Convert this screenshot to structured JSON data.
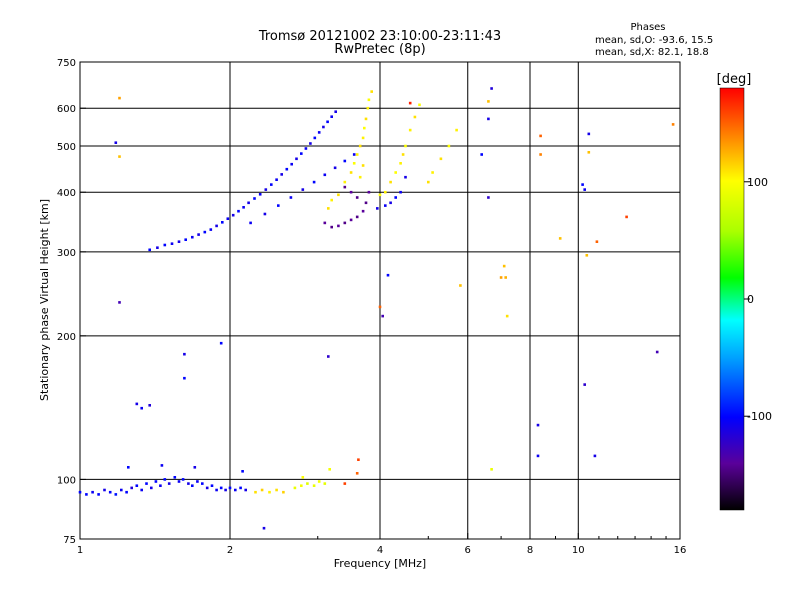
{
  "chart_data": {
    "type": "scatter",
    "title": "Tromsø 20121002 23:10:00-23:11:43",
    "subtitle": "RwPretec (8p)",
    "xlabel": "Frequency [MHz]",
    "ylabel": "Stationary phase Virtual Height [km]",
    "x_scale": "log",
    "y_scale": "log",
    "xlim": [
      1,
      16
    ],
    "ylim": [
      75,
      750
    ],
    "x_ticks": [
      1,
      2,
      4,
      6,
      8,
      10,
      16
    ],
    "x_tick_labels": [
      "1",
      "2",
      "4",
      "6",
      "8",
      "10",
      "16"
    ],
    "x_grid_lines": [
      2,
      4,
      6,
      8,
      10
    ],
    "y_ticks": [
      75,
      100,
      200,
      300,
      400,
      500,
      600,
      750
    ],
    "y_tick_labels": [
      "75",
      "100",
      "200",
      "300",
      "400",
      "500",
      "600",
      "750"
    ],
    "y_grid_lines": [
      100,
      200,
      300,
      400,
      500,
      600
    ],
    "grid": true,
    "legend": {
      "title": "Phases",
      "lines": [
        "mean, sd,O: -93.6, 15.5",
        "mean, sd,X:  82.1, 18.8"
      ],
      "position": "top-right"
    },
    "colorbar": {
      "label": "[deg]",
      "range": [
        -180,
        180
      ],
      "ticks": [
        100,
        0,
        -100
      ],
      "tick_labels": [
        "100",
        "0",
        "-100"
      ],
      "colors": [
        "#000000",
        "#5a009a",
        "#0000ff",
        "#00a0ff",
        "#00ffff",
        "#00ff00",
        "#aaff00",
        "#ffff00",
        "#ff8000",
        "#ff0000"
      ]
    },
    "series": [
      {
        "points": [
          [
            1.0,
            94,
            -100
          ],
          [
            1.03,
            93,
            -100
          ],
          [
            1.06,
            94,
            -105
          ],
          [
            1.09,
            93,
            -100
          ],
          [
            1.12,
            95,
            -110
          ],
          [
            1.15,
            94,
            -100
          ],
          [
            1.18,
            93,
            -95
          ],
          [
            1.21,
            95,
            -105
          ],
          [
            1.24,
            94,
            -100
          ],
          [
            1.27,
            96,
            -115
          ],
          [
            1.3,
            97,
            -100
          ],
          [
            1.33,
            95,
            -105
          ],
          [
            1.36,
            98,
            -100
          ],
          [
            1.39,
            96,
            -110
          ],
          [
            1.42,
            99,
            -100
          ],
          [
            1.45,
            97,
            -105
          ],
          [
            1.48,
            100,
            -100
          ],
          [
            1.51,
            98,
            -110
          ],
          [
            1.55,
            101,
            -100
          ],
          [
            1.58,
            99,
            -105
          ],
          [
            1.61,
            100,
            -100
          ],
          [
            1.65,
            98,
            -110
          ],
          [
            1.68,
            97,
            -100
          ],
          [
            1.72,
            99,
            -105
          ],
          [
            1.76,
            98,
            -100
          ],
          [
            1.8,
            96,
            -110
          ],
          [
            1.84,
            97,
            -100
          ],
          [
            1.88,
            95,
            -105
          ],
          [
            1.92,
            96,
            -100
          ],
          [
            1.96,
            95,
            -110
          ],
          [
            2.0,
            96,
            -100
          ],
          [
            2.05,
            95,
            -105
          ],
          [
            2.1,
            96,
            -100
          ],
          [
            2.15,
            95,
            -110
          ],
          [
            2.25,
            94,
            110
          ],
          [
            2.32,
            95,
            115
          ],
          [
            2.4,
            94,
            105
          ],
          [
            2.48,
            95,
            110
          ],
          [
            2.56,
            94,
            115
          ],
          [
            2.7,
            96,
            90
          ],
          [
            2.78,
            97,
            95
          ],
          [
            2.86,
            98,
            85
          ],
          [
            2.95,
            97,
            90
          ],
          [
            3.02,
            99,
            95
          ],
          [
            3.1,
            98,
            88
          ],
          [
            3.4,
            98,
            160
          ],
          [
            3.6,
            103,
            150
          ],
          [
            1.3,
            144,
            -110
          ],
          [
            1.33,
            141,
            -105
          ],
          [
            1.38,
            143,
            -115
          ],
          [
            1.62,
            163,
            -100
          ],
          [
            1.62,
            183,
            -110
          ],
          [
            1.92,
            193,
            -100
          ],
          [
            1.25,
            106,
            -100
          ],
          [
            1.46,
            107,
            -105
          ],
          [
            1.7,
            106,
            -110
          ],
          [
            2.12,
            104,
            -100
          ],
          [
            2.34,
            79,
            -110
          ],
          [
            2.8,
            101,
            100
          ],
          [
            3.17,
            105,
            95
          ],
          [
            3.15,
            181,
            -120
          ],
          [
            3.62,
            110,
            160
          ],
          [
            1.38,
            303,
            -100
          ],
          [
            1.43,
            306,
            -110
          ],
          [
            1.48,
            310,
            -100
          ],
          [
            1.53,
            312,
            -105
          ],
          [
            1.58,
            315,
            -110
          ],
          [
            1.63,
            318,
            -100
          ],
          [
            1.68,
            322,
            -105
          ],
          [
            1.73,
            326,
            -110
          ],
          [
            1.78,
            330,
            -100
          ],
          [
            1.83,
            334,
            -105
          ],
          [
            1.88,
            340,
            -110
          ],
          [
            1.93,
            346,
            -100
          ],
          [
            1.98,
            352,
            -105
          ],
          [
            2.03,
            358,
            -110
          ],
          [
            2.08,
            365,
            -100
          ],
          [
            2.13,
            372,
            -105
          ],
          [
            2.18,
            380,
            -110
          ],
          [
            2.24,
            388,
            -100
          ],
          [
            2.3,
            396,
            -105
          ],
          [
            2.36,
            405,
            -110
          ],
          [
            2.42,
            415,
            -100
          ],
          [
            2.48,
            425,
            -105
          ],
          [
            2.54,
            436,
            -110
          ],
          [
            2.6,
            447,
            -100
          ],
          [
            2.66,
            458,
            -105
          ],
          [
            2.72,
            470,
            -110
          ],
          [
            2.78,
            482,
            -100
          ],
          [
            2.84,
            494,
            -105
          ],
          [
            2.9,
            506,
            -110
          ],
          [
            2.96,
            520,
            -100
          ],
          [
            3.02,
            534,
            -105
          ],
          [
            3.08,
            548,
            -110
          ],
          [
            3.14,
            562,
            -100
          ],
          [
            3.2,
            576,
            -105
          ],
          [
            3.26,
            590,
            -110
          ],
          [
            2.2,
            345,
            -105
          ],
          [
            2.35,
            360,
            -110
          ],
          [
            2.5,
            375,
            -100
          ],
          [
            2.65,
            390,
            -105
          ],
          [
            2.8,
            405,
            -110
          ],
          [
            2.95,
            420,
            -100
          ],
          [
            3.1,
            435,
            -105
          ],
          [
            3.25,
            450,
            -110
          ],
          [
            3.4,
            465,
            -100
          ],
          [
            3.55,
            480,
            -105
          ],
          [
            3.1,
            345,
            -140
          ],
          [
            3.2,
            338,
            -145
          ],
          [
            3.3,
            340,
            -140
          ],
          [
            3.4,
            345,
            -145
          ],
          [
            3.5,
            350,
            -140
          ],
          [
            3.6,
            355,
            -145
          ],
          [
            3.7,
            365,
            -140
          ],
          [
            3.75,
            380,
            -145
          ],
          [
            3.8,
            400,
            -140
          ],
          [
            3.6,
            390,
            -145
          ],
          [
            3.5,
            400,
            -140
          ],
          [
            3.4,
            410,
            -145
          ],
          [
            3.15,
            370,
            110
          ],
          [
            3.2,
            385,
            105
          ],
          [
            3.3,
            395,
            110
          ],
          [
            3.4,
            420,
            105
          ],
          [
            3.5,
            440,
            110
          ],
          [
            3.55,
            460,
            100
          ],
          [
            3.6,
            480,
            105
          ],
          [
            3.65,
            500,
            110
          ],
          [
            3.7,
            520,
            105
          ],
          [
            3.72,
            545,
            100
          ],
          [
            3.75,
            570,
            110
          ],
          [
            3.78,
            600,
            105
          ],
          [
            3.8,
            625,
            100
          ],
          [
            3.85,
            650,
            110
          ],
          [
            3.65,
            430,
            105
          ],
          [
            3.7,
            455,
            110
          ],
          [
            4.0,
            395,
            100
          ],
          [
            4.1,
            400,
            105
          ],
          [
            4.2,
            420,
            110
          ],
          [
            4.3,
            440,
            100
          ],
          [
            4.4,
            460,
            105
          ],
          [
            4.45,
            480,
            110
          ],
          [
            4.5,
            500,
            100
          ],
          [
            4.6,
            540,
            105
          ],
          [
            4.7,
            575,
            110
          ],
          [
            4.8,
            610,
            100
          ],
          [
            3.95,
            370,
            -110
          ],
          [
            4.1,
            375,
            -105
          ],
          [
            4.2,
            380,
            -110
          ],
          [
            4.3,
            390,
            -100
          ],
          [
            4.4,
            400,
            -105
          ],
          [
            4.5,
            430,
            -110
          ],
          [
            5.0,
            420,
            110
          ],
          [
            5.1,
            440,
            105
          ],
          [
            5.3,
            470,
            110
          ],
          [
            5.5,
            500,
            100
          ],
          [
            5.7,
            540,
            105
          ],
          [
            4.0,
            230,
            150
          ],
          [
            4.05,
            220,
            -130
          ],
          [
            4.15,
            268,
            -100
          ],
          [
            4.6,
            615,
            170
          ],
          [
            5.8,
            255,
            120
          ],
          [
            6.4,
            480,
            -100
          ],
          [
            6.6,
            570,
            -110
          ],
          [
            6.6,
            390,
            -120
          ],
          [
            6.7,
            660,
            -115
          ],
          [
            6.6,
            620,
            120
          ],
          [
            6.7,
            105,
            90
          ],
          [
            7.0,
            265,
            130
          ],
          [
            7.1,
            280,
            120
          ],
          [
            7.15,
            265,
            125
          ],
          [
            7.2,
            220,
            110
          ],
          [
            8.4,
            525,
            150
          ],
          [
            8.4,
            480,
            140
          ],
          [
            8.3,
            130,
            -110
          ],
          [
            8.3,
            112,
            -105
          ],
          [
            9.2,
            320,
            120
          ],
          [
            10.5,
            530,
            -110
          ],
          [
            10.5,
            485,
            120
          ],
          [
            10.2,
            415,
            -100
          ],
          [
            10.3,
            405,
            -105
          ],
          [
            10.4,
            295,
            120
          ],
          [
            10.3,
            158,
            -120
          ],
          [
            10.8,
            112,
            -110
          ],
          [
            10.9,
            315,
            150
          ],
          [
            12.5,
            355,
            160
          ],
          [
            14.4,
            185,
            -130
          ],
          [
            15.5,
            555,
            140
          ],
          [
            1.2,
            630,
            130
          ],
          [
            1.2,
            475,
            120
          ],
          [
            1.2,
            235,
            -130
          ],
          [
            1.18,
            508,
            -110
          ]
        ]
      }
    ]
  }
}
